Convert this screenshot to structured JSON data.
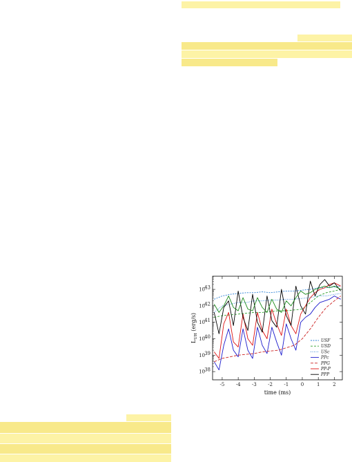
{
  "page": {
    "highlight_color": "#fdf3a6",
    "highlight_color_dark": "#f8e98a"
  },
  "chart_data": {
    "type": "line",
    "xlabel": "time (ms)",
    "ylabel": "L_UH (erg/s)",
    "xlim": [
      -5.6,
      2.5
    ],
    "xticks": [
      "-5",
      "-4",
      "-3",
      "-2",
      "-1",
      "0",
      "1",
      "2"
    ],
    "ylim_log10": [
      37.5,
      43.8
    ],
    "yticks": [
      {
        "exp": 38,
        "label": "10^38"
      },
      {
        "exp": 39,
        "label": "10^39"
      },
      {
        "exp": 40,
        "label": "10^40"
      },
      {
        "exp": 41,
        "label": "10^41"
      },
      {
        "exp": 42,
        "label": "10^42"
      },
      {
        "exp": 43,
        "label": "10^43"
      }
    ],
    "legend_position": "lower-right",
    "series": [
      {
        "name": "USF",
        "color": "#2a7fd4",
        "dash": "2,1.5",
        "x": [
          -5.5,
          -5,
          -4.5,
          -4,
          -3.5,
          -3,
          -2.5,
          -2,
          -1.5,
          -1,
          -0.5,
          0,
          0.5,
          1,
          1.5,
          2,
          2.4
        ],
        "log10_y": [
          42.4,
          42.6,
          42.7,
          42.75,
          42.8,
          42.8,
          42.85,
          42.8,
          42.85,
          42.9,
          42.9,
          42.95,
          43.0,
          43.1,
          43.1,
          43.15,
          43.2
        ]
      },
      {
        "name": "USD",
        "color": "#2aa02a",
        "dash": "3,2",
        "x": [
          -5.5,
          -5,
          -4.5,
          -4,
          -3.5,
          -3,
          -2.5,
          -2,
          -1.5,
          -1,
          -0.5,
          0,
          0.5,
          1,
          1.5,
          2,
          2.4
        ],
        "log10_y": [
          41.3,
          41.4,
          41.45,
          41.5,
          41.55,
          41.6,
          41.6,
          41.65,
          41.7,
          41.7,
          41.75,
          41.8,
          42.2,
          42.6,
          42.8,
          42.9,
          43.0
        ]
      },
      {
        "name": "USc",
        "color": "#2a7fd4",
        "dash": "1,1.5",
        "x": [
          -5.5,
          -5,
          -4.5,
          -4,
          -3.5,
          -3,
          -2.5,
          -2,
          -1.5,
          -1,
          -0.5,
          0,
          0.5,
          1,
          1.5,
          2,
          2.4
        ],
        "log10_y": [
          41.6,
          42.0,
          42.1,
          42.2,
          42.2,
          42.3,
          42.3,
          42.35,
          42.35,
          42.4,
          42.4,
          42.45,
          42.5,
          42.6,
          42.6,
          42.7,
          42.75
        ]
      },
      {
        "name": "PPc",
        "color": "#1a1acc",
        "dash": "",
        "x": [
          -5.5,
          -5.2,
          -4.9,
          -4.6,
          -4.3,
          -4.0,
          -3.7,
          -3.4,
          -3.1,
          -2.8,
          -2.5,
          -2.2,
          -1.9,
          -1.6,
          -1.3,
          -1.0,
          -0.7,
          -0.4,
          -0.1,
          0.2,
          0.5,
          0.8,
          1.1,
          1.4,
          1.7,
          2.0,
          2.4
        ],
        "log10_y": [
          38.6,
          38.1,
          39.6,
          40.6,
          39.3,
          38.9,
          40.6,
          39.3,
          38.8,
          40.7,
          39.6,
          39.1,
          40.7,
          39.8,
          39.0,
          40.9,
          40.0,
          39.3,
          41.0,
          41.3,
          41.5,
          41.9,
          42.2,
          42.3,
          42.4,
          42.6,
          42.4
        ]
      },
      {
        "name": "PPG",
        "color": "#cc2020",
        "dash": "4,2",
        "x": [
          -5.5,
          -5,
          -4.5,
          -4,
          -3.5,
          -3,
          -2.5,
          -2,
          -1.5,
          -1,
          -0.5,
          0,
          0.5,
          1,
          1.5,
          2,
          2.4
        ],
        "log10_y": [
          38.6,
          38.8,
          38.9,
          39.0,
          39.05,
          39.1,
          39.2,
          39.25,
          39.3,
          39.45,
          39.6,
          40.0,
          40.6,
          41.3,
          41.9,
          42.3,
          42.6
        ]
      },
      {
        "name": "PP-P",
        "color": "#dd1010",
        "dash": "",
        "x": [
          -5.5,
          -5.2,
          -4.9,
          -4.6,
          -4.3,
          -4.0,
          -3.7,
          -3.4,
          -3.1,
          -2.8,
          -2.5,
          -2.2,
          -1.9,
          -1.6,
          -1.3,
          -1.0,
          -0.7,
          -0.4,
          -0.1,
          0.2,
          0.5,
          0.8,
          1.1,
          1.4,
          1.7,
          2.0,
          2.4
        ],
        "log10_y": [
          39.2,
          38.8,
          40.9,
          41.6,
          39.8,
          39.5,
          41.5,
          40.0,
          39.6,
          41.6,
          40.5,
          40.0,
          41.8,
          40.9,
          40.2,
          41.8,
          40.8,
          40.3,
          41.5,
          42.0,
          42.5,
          42.8,
          43.0,
          43.1,
          43.3,
          43.4,
          43.2
        ]
      },
      {
        "name": "PPP",
        "color": "#000000",
        "dash": "",
        "x": [
          -5.5,
          -5.2,
          -4.9,
          -4.6,
          -4.3,
          -4.0,
          -3.7,
          -3.4,
          -3.1,
          -2.8,
          -2.5,
          -2.2,
          -1.9,
          -1.6,
          -1.3,
          -1.0,
          -0.7,
          -0.4,
          -0.1,
          0.2,
          0.5,
          0.8,
          1.1,
          1.4,
          1.7,
          2.0,
          2.4
        ],
        "log10_y": [
          41.6,
          40.3,
          41.9,
          42.3,
          40.8,
          42.9,
          41.3,
          40.5,
          42.7,
          41.0,
          40.4,
          42.6,
          41.1,
          40.7,
          43.0,
          41.4,
          40.8,
          43.2,
          42.0,
          41.5,
          43.5,
          42.6,
          43.3,
          43.6,
          43.2,
          43.4,
          42.9
        ]
      },
      {
        "name": "",
        "color": "#1a8a1a",
        "dash": "",
        "x": [
          -5.5,
          -5.2,
          -4.9,
          -4.6,
          -4.3,
          -4.0,
          -3.7,
          -3.4,
          -3.1,
          -2.8,
          -2.5,
          -2.2,
          -1.9,
          -1.6,
          -1.3,
          -1.0,
          -0.7,
          -0.4,
          -0.1,
          0.2,
          0.5,
          0.8,
          1.1,
          1.4,
          1.7,
          2.0,
          2.4
        ],
        "log10_y": [
          42.1,
          41.6,
          42.0,
          42.6,
          41.9,
          41.7,
          42.5,
          41.8,
          41.7,
          42.5,
          41.9,
          41.6,
          42.4,
          41.8,
          41.6,
          42.3,
          42.0,
          42.5,
          42.9,
          42.7,
          42.8,
          43.0,
          43.1,
          43.2,
          43.1,
          43.2,
          43.0
        ]
      }
    ]
  }
}
